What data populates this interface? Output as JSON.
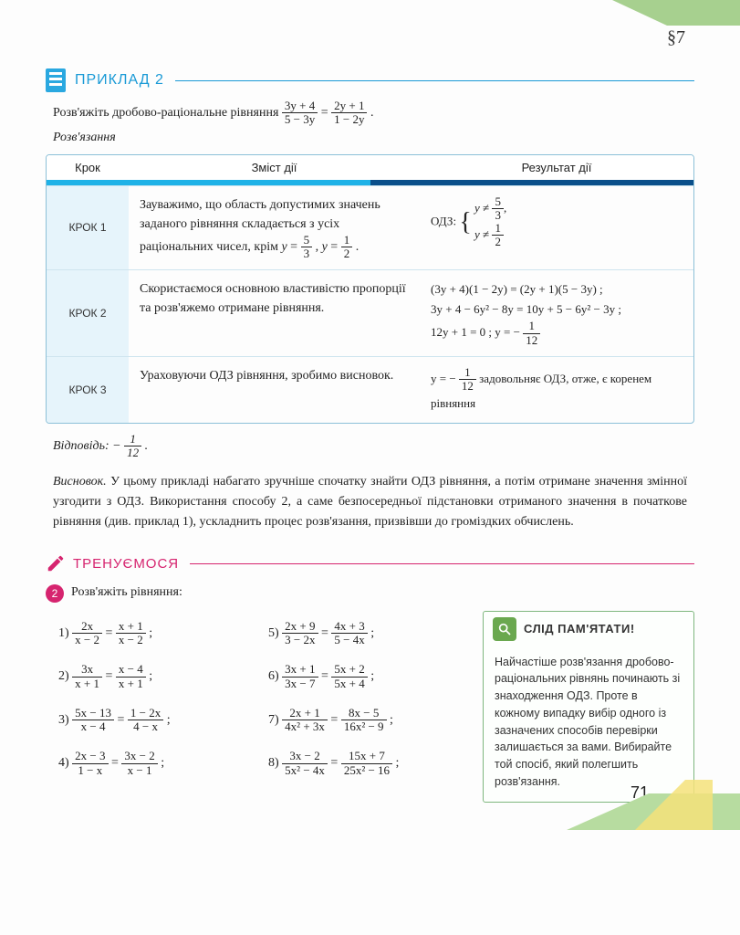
{
  "section_ref": "§7",
  "example": {
    "title": "ПРИКЛАД 2",
    "problem_prefix": "Розв'яжіть дробово-раціональне рівняння ",
    "eq_lhs_n": "3y + 4",
    "eq_lhs_d": "5 − 3y",
    "eq_rhs_n": "2y + 1",
    "eq_rhs_d": "1 − 2y",
    "solution_label": "Розв'язання"
  },
  "table": {
    "head_a": "Крок",
    "head_b": "Зміст дії",
    "head_c": "Результат дії",
    "rows": [
      {
        "label": "КРОК 1",
        "desc_1": "Зауважимо, що область допустимих значень заданого рівняння складається з усіх раціональних чисел, крім ",
        "desc_f1n": "5",
        "desc_f1d": "3",
        "desc_mid": ", ",
        "desc_f2n": "1",
        "desc_f2d": "2",
        "desc_end": ".",
        "res_label": "ОДЗ:",
        "res_l1": "y ≠ 5/3,",
        "res_l2": "y ≠ 1/2"
      },
      {
        "label": "КРОК 2",
        "desc": "Скористаємося основною властивістю пропорції та розв'яжемо отримане рівняння.",
        "res_l1": "(3y + 4)(1 − 2y) = (2y + 1)(5 − 3y) ;",
        "res_l2": "3y + 4 − 6y² − 8y = 10y + 5 − 6y² − 3y ;",
        "res_l3_a": "12y + 1 = 0 ;  y = −",
        "res_l3_fn": "1",
        "res_l3_fd": "12"
      },
      {
        "label": "КРОК 3",
        "desc": "Ураховуючи ОДЗ рівняння, зробимо висновок.",
        "res_a": "y = −",
        "res_fn": "1",
        "res_fd": "12",
        "res_b": " задовольняє ОДЗ, отже, є коренем рівняння"
      }
    ]
  },
  "answer": {
    "label": "Відповідь: ",
    "val_prefix": "−",
    "val_n": "1",
    "val_d": "12",
    "val_suffix": "."
  },
  "conclusion": {
    "lead": "Висновок.",
    "text": " У цьому прикладі набагато зручніше спочатку знайти ОДЗ рівняння, а потім отримане значення змінної узгодити з ОДЗ. Використання способу 2, а саме безпосередньої підстановки отриманого значення в початкове рівняння (див. приклад 1), ускладнить процес розв'язання, призвівши до громіздких обчислень."
  },
  "train": {
    "title": "ТРЕНУЄМОСЯ",
    "ex_number": "2",
    "prompt": "Розв'яжіть рівняння:",
    "items_left": [
      {
        "no": "1)",
        "ln": "2x",
        "ld": "x − 2",
        "rn": "x + 1",
        "rd": "x − 2"
      },
      {
        "no": "2)",
        "ln": "3x",
        "ld": "x + 1",
        "rn": "x − 4",
        "rd": "x + 1"
      },
      {
        "no": "3)",
        "ln": "5x − 13",
        "ld": "x − 4",
        "rn": "1 − 2x",
        "rd": "4 − x"
      },
      {
        "no": "4)",
        "ln": "2x − 3",
        "ld": "1 − x",
        "rn": "3x − 2",
        "rd": "x − 1"
      }
    ],
    "items_right": [
      {
        "no": "5)",
        "ln": "2x + 9",
        "ld": "3 − 2x",
        "rn": "4x + 3",
        "rd": "5 − 4x"
      },
      {
        "no": "6)",
        "ln": "3x + 1",
        "ld": "3x − 7",
        "rn": "5x + 2",
        "rd": "5x + 4"
      },
      {
        "no": "7)",
        "ln": "2x + 1",
        "ld": "4x² + 3x",
        "rn": "8x − 5",
        "rd": "16x² − 9"
      },
      {
        "no": "8)",
        "ln": "3x − 2",
        "ld": "5x² − 4x",
        "rn": "15x + 7",
        "rd": "25x² − 16"
      }
    ]
  },
  "remember": {
    "title": "СЛІД ПАМ'ЯТАТИ!",
    "text": "Найчастіше розв'язання дробово-раціональних рівнянь починають зі знаходження ОДЗ. Проте в кожному випадку вибір одного із зазначених способів перевірки залишається за вами. Вибирайте той спосіб, який полегшить розв'язання."
  },
  "page_number": "71",
  "colors": {
    "blue": "#1a9ad6",
    "darkblue": "#0a4f8a",
    "magenta": "#d6246f",
    "green": "#6aa84f",
    "lightgreen": "#b7dca0",
    "yellow": "#f4e27a"
  }
}
